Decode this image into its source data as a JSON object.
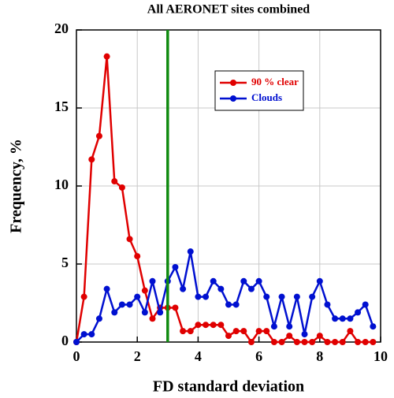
{
  "chart_data": {
    "type": "line",
    "title": "All AERONET sites combined",
    "x_label": "FD standard deviation",
    "y_label": "Frequency, %",
    "x": [
      0,
      0.25,
      0.5,
      0.75,
      1,
      1.25,
      1.5,
      1.75,
      2,
      2.25,
      2.5,
      2.75,
      3,
      3.25,
      3.5,
      3.75,
      4,
      4.25,
      4.5,
      4.75,
      5,
      5.25,
      5.5,
      5.75,
      6,
      6.25,
      6.5,
      6.75,
      7,
      7.25,
      7.5,
      7.75,
      8,
      8.25,
      8.5,
      8.75,
      9,
      9.25,
      9.5,
      9.75
    ],
    "series": [
      {
        "name": "90 % clear",
        "color": "#e00000",
        "values": [
          0,
          2.9,
          11.7,
          13.2,
          18.3,
          10.3,
          9.9,
          6.6,
          5.5,
          3.3,
          1.5,
          2.2,
          2.2,
          2.2,
          0.7,
          0.7,
          1.1,
          1.1,
          1.1,
          1.1,
          0.4,
          0.7,
          0.7,
          0,
          0.7,
          0.7,
          0,
          0,
          0.4,
          0,
          0,
          0,
          0.4,
          0,
          0,
          0,
          0.7,
          0,
          0,
          0
        ]
      },
      {
        "name": "Clouds",
        "color": "#0010d0",
        "values": [
          0,
          0.5,
          0.5,
          1.5,
          3.4,
          1.9,
          2.4,
          2.4,
          2.9,
          1.9,
          3.9,
          1.9,
          3.9,
          4.8,
          3.4,
          5.8,
          2.9,
          2.9,
          3.9,
          3.4,
          2.4,
          2.4,
          3.9,
          3.4,
          3.9,
          2.9,
          1.0,
          2.9,
          1.0,
          2.9,
          0.5,
          2.9,
          3.9,
          2.4,
          1.5,
          1.5,
          1.5,
          1.9,
          2.4,
          1.0
        ]
      }
    ],
    "vline": {
      "x": 3,
      "color": "#108a10"
    },
    "xlim": [
      0,
      10
    ],
    "xticks": [
      0,
      2,
      4,
      6,
      8,
      10
    ],
    "ylim": [
      0,
      20
    ],
    "yticks": [
      0,
      5,
      10,
      15,
      20
    ],
    "grid": true
  }
}
